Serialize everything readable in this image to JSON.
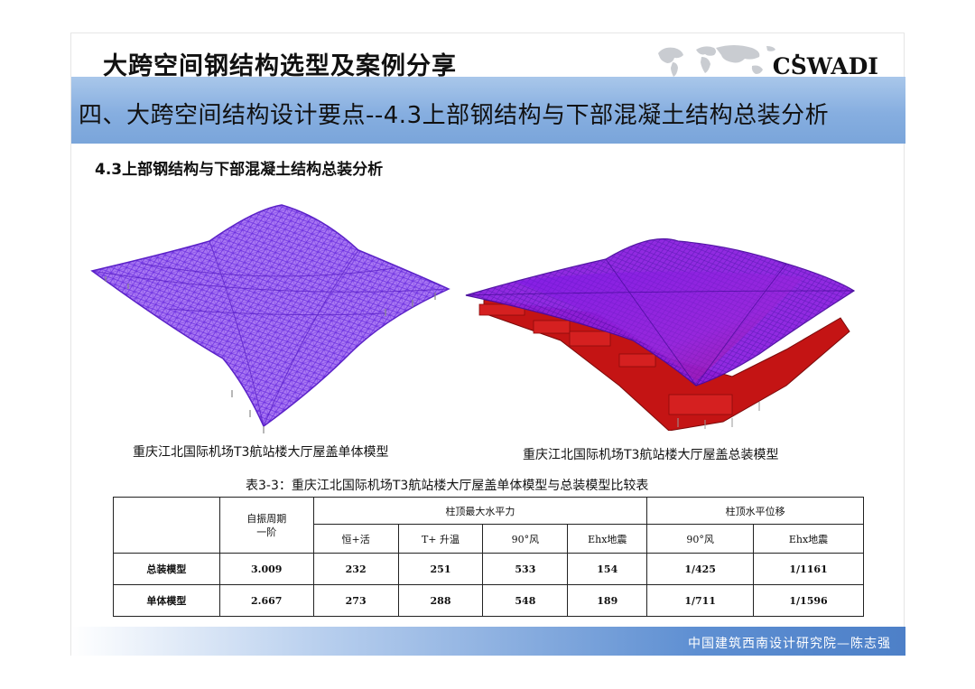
{
  "header": {
    "title": "大跨空间钢结构选型及案例分享",
    "logo_dot": ".",
    "logo": "CSWADI"
  },
  "section": {
    "title": "四、大跨空间结构设计要点--4.3上部钢结构与下部混凝土结构总装分析"
  },
  "subtitle": "4.3上部钢结构与下部混凝土结构总装分析",
  "figures": {
    "left_caption": "重庆江北国际机场T3航站楼大厅屋盖单体模型",
    "right_caption": "重庆江北国际机场T3航站楼大厅屋盖总装模型"
  },
  "table": {
    "title": "表3-3：重庆江北国际机场T3航站楼大厅屋盖单体模型与总装模型比较表",
    "period_header": "自振周期\n一阶",
    "group_force": "柱顶最大水平力",
    "group_disp": "柱顶水平位移",
    "sub_headers": [
      "恒+活",
      "T+ 升温",
      "90°风",
      "Ehx地震",
      "90°风",
      "Ehx地震"
    ],
    "rows": [
      {
        "label": "总装模型",
        "values": [
          "3.009",
          "232",
          "251",
          "533",
          "154",
          "1/425",
          "1/1161"
        ]
      },
      {
        "label": "单体模型",
        "values": [
          "2.667",
          "273",
          "288",
          "548",
          "189",
          "1/711",
          "1/1596"
        ]
      }
    ]
  },
  "footer": {
    "text": "中国建筑西南设计研究院—陈志强"
  },
  "colors": {
    "section_bar": "#86aee0",
    "footer_bar": "#4d80c8",
    "model_purple": "#8a4df0",
    "model_red": "#c41414"
  }
}
